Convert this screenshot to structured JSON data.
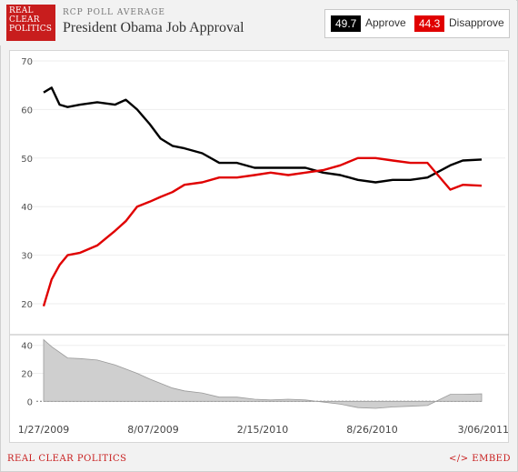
{
  "header": {
    "logo_lines": [
      "REAL",
      "CLEAR",
      "POLITICS"
    ],
    "kicker": "RCP POLL AVERAGE",
    "title": "President Obama Job Approval"
  },
  "legend": {
    "approve_value": "49.7",
    "approve_label": "Approve",
    "disapprove_value": "44.3",
    "disapprove_label": "Disapprove"
  },
  "footer": {
    "left": "REAL CLEAR POLITICS",
    "right": "</> EMBED"
  },
  "colors": {
    "approve": "#000000",
    "disapprove": "#e00000",
    "brand": "#c81d1d",
    "spread_fill": "#cfcfcf"
  },
  "chart_data": [
    {
      "type": "line",
      "title": "President Obama Job Approval",
      "x_tick_labels": [
        "1/27/2009",
        "8/07/2009",
        "2/15/2010",
        "8/26/2010",
        "3/06/2011"
      ],
      "y_ticks": [
        20,
        30,
        40,
        50,
        60,
        70
      ],
      "ylim": [
        17,
        70
      ],
      "xlim": [
        "2009-01-27",
        "2011-03-06"
      ],
      "series": [
        {
          "name": "Approve",
          "x": [
            "2009-01-27",
            "2009-02-10",
            "2009-02-24",
            "2009-03-10",
            "2009-04-01",
            "2009-05-01",
            "2009-06-01",
            "2009-06-20",
            "2009-07-10",
            "2009-08-01",
            "2009-08-20",
            "2009-09-10",
            "2009-10-01",
            "2009-11-01",
            "2009-12-01",
            "2010-01-01",
            "2010-02-01",
            "2010-03-01",
            "2010-04-01",
            "2010-05-01",
            "2010-06-01",
            "2010-07-01",
            "2010-08-01",
            "2010-09-01",
            "2010-10-01",
            "2010-11-01",
            "2010-12-01",
            "2011-01-10",
            "2011-02-01",
            "2011-03-06"
          ],
          "values": [
            63.5,
            64.5,
            61,
            60.5,
            61,
            61.5,
            61,
            62,
            60,
            57,
            54,
            52.5,
            52,
            51,
            49,
            49,
            48,
            48,
            48,
            48,
            47,
            46.5,
            45.5,
            45,
            45.5,
            45.5,
            46,
            48.5,
            49.5,
            49.7
          ]
        },
        {
          "name": "Disapprove",
          "x": [
            "2009-01-27",
            "2009-02-10",
            "2009-02-24",
            "2009-03-10",
            "2009-04-01",
            "2009-05-01",
            "2009-06-01",
            "2009-06-20",
            "2009-07-10",
            "2009-08-01",
            "2009-08-20",
            "2009-09-10",
            "2009-10-01",
            "2009-11-01",
            "2009-12-01",
            "2010-01-01",
            "2010-02-01",
            "2010-03-01",
            "2010-04-01",
            "2010-05-01",
            "2010-06-01",
            "2010-07-01",
            "2010-08-01",
            "2010-09-01",
            "2010-10-01",
            "2010-11-01",
            "2010-12-01",
            "2011-01-10",
            "2011-02-01",
            "2011-03-06"
          ],
          "values": [
            19.5,
            25,
            28,
            30,
            30.5,
            32,
            35,
            37,
            40,
            41,
            42,
            43,
            44.5,
            45,
            46,
            46,
            46.5,
            47,
            46.5,
            47,
            47.5,
            48.5,
            50,
            50,
            49.5,
            49,
            49,
            43.5,
            44.5,
            44.3
          ]
        }
      ]
    },
    {
      "type": "area",
      "title": "",
      "y_ticks": [
        0,
        20,
        40
      ],
      "ylim": [
        -5,
        45
      ],
      "xlim": [
        "2009-01-27",
        "2011-03-06"
      ],
      "series": [
        {
          "x": [
            "2009-01-27",
            "2009-02-10",
            "2009-03-10",
            "2009-04-01",
            "2009-05-01",
            "2009-06-01",
            "2009-07-10",
            "2009-08-01",
            "2009-09-10",
            "2009-10-01",
            "2009-11-01",
            "2009-12-01",
            "2010-01-01",
            "2010-02-01",
            "2010-03-01",
            "2010-04-01",
            "2010-05-01",
            "2010-06-01",
            "2010-07-01",
            "2010-08-01",
            "2010-09-01",
            "2010-10-01",
            "2010-11-01",
            "2010-12-01",
            "2011-01-10",
            "2011-02-01",
            "2011-03-06"
          ],
          "values": [
            44,
            39,
            31,
            30.5,
            29.5,
            26,
            20,
            16,
            9.5,
            7.5,
            6,
            3,
            3,
            1.5,
            1,
            1.5,
            1,
            -0.5,
            -2,
            -4.5,
            -5,
            -4,
            -3.5,
            -3,
            5,
            5,
            5.4
          ]
        }
      ]
    }
  ]
}
